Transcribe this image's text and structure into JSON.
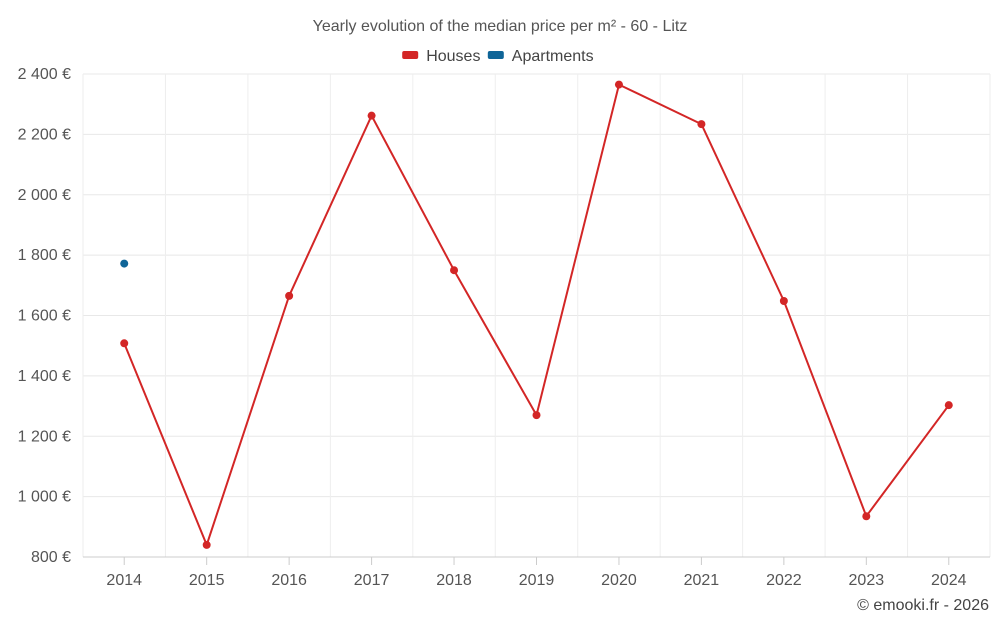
{
  "chart_data": {
    "type": "line",
    "title": "Yearly evolution of the median price per m² - 60 - Litz",
    "categories": [
      "2014",
      "2015",
      "2016",
      "2017",
      "2018",
      "2019",
      "2020",
      "2021",
      "2022",
      "2023",
      "2024"
    ],
    "series": [
      {
        "name": "Houses",
        "color": "#d32626",
        "values": [
          1508,
          840,
          1665,
          2262,
          1750,
          1270,
          2365,
          2234,
          1648,
          935,
          1303
        ]
      },
      {
        "name": "Apartments",
        "color": "#0f6598",
        "values": [
          1772,
          null,
          null,
          null,
          null,
          null,
          null,
          null,
          null,
          null,
          null
        ]
      }
    ],
    "y_ticks": [
      800,
      1000,
      1200,
      1400,
      1600,
      1800,
      2000,
      2200,
      2400
    ],
    "y_tick_labels": [
      "800 €",
      "1 000 €",
      "1 200 €",
      "1 400 €",
      "1 600 €",
      "1 800 €",
      "2 000 €",
      "2 200 €",
      "2 400 €"
    ],
    "ylim": [
      800,
      2400
    ],
    "xlabel": "",
    "ylabel": "",
    "grid": true,
    "legend_position": "top-center",
    "credit": "© emooki.fr - 2026"
  }
}
